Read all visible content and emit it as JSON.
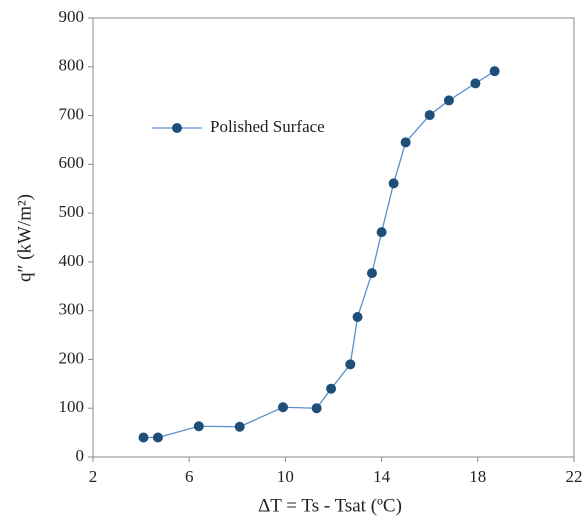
{
  "chart_data": {
    "type": "line",
    "x_label": "ΔT = Ts - Tsat (ºC)",
    "y_label": "q″ (kW/m²)",
    "x": [
      4.1,
      4.7,
      6.4,
      8.1,
      9.9,
      11.3,
      11.9,
      12.7,
      13.0,
      13.6,
      14.0,
      14.5,
      15.0,
      16.0,
      16.8,
      17.9,
      18.7
    ],
    "series": [
      {
        "name": "Polished Surface",
        "color": "#1f4e79",
        "line_color": "#5b8fd0",
        "values": [
          40,
          40,
          63,
          62,
          102,
          100,
          140,
          190,
          287,
          377,
          461,
          561,
          645,
          701,
          731,
          766,
          791
        ]
      }
    ],
    "xlim": [
      2,
      22
    ],
    "xticks": [
      2,
      6,
      10,
      14,
      18,
      22
    ],
    "ylim": [
      0,
      900
    ],
    "yticks": [
      0,
      100,
      200,
      300,
      400,
      500,
      600,
      700,
      800,
      900
    ],
    "grid": false,
    "legend": "upper left"
  }
}
